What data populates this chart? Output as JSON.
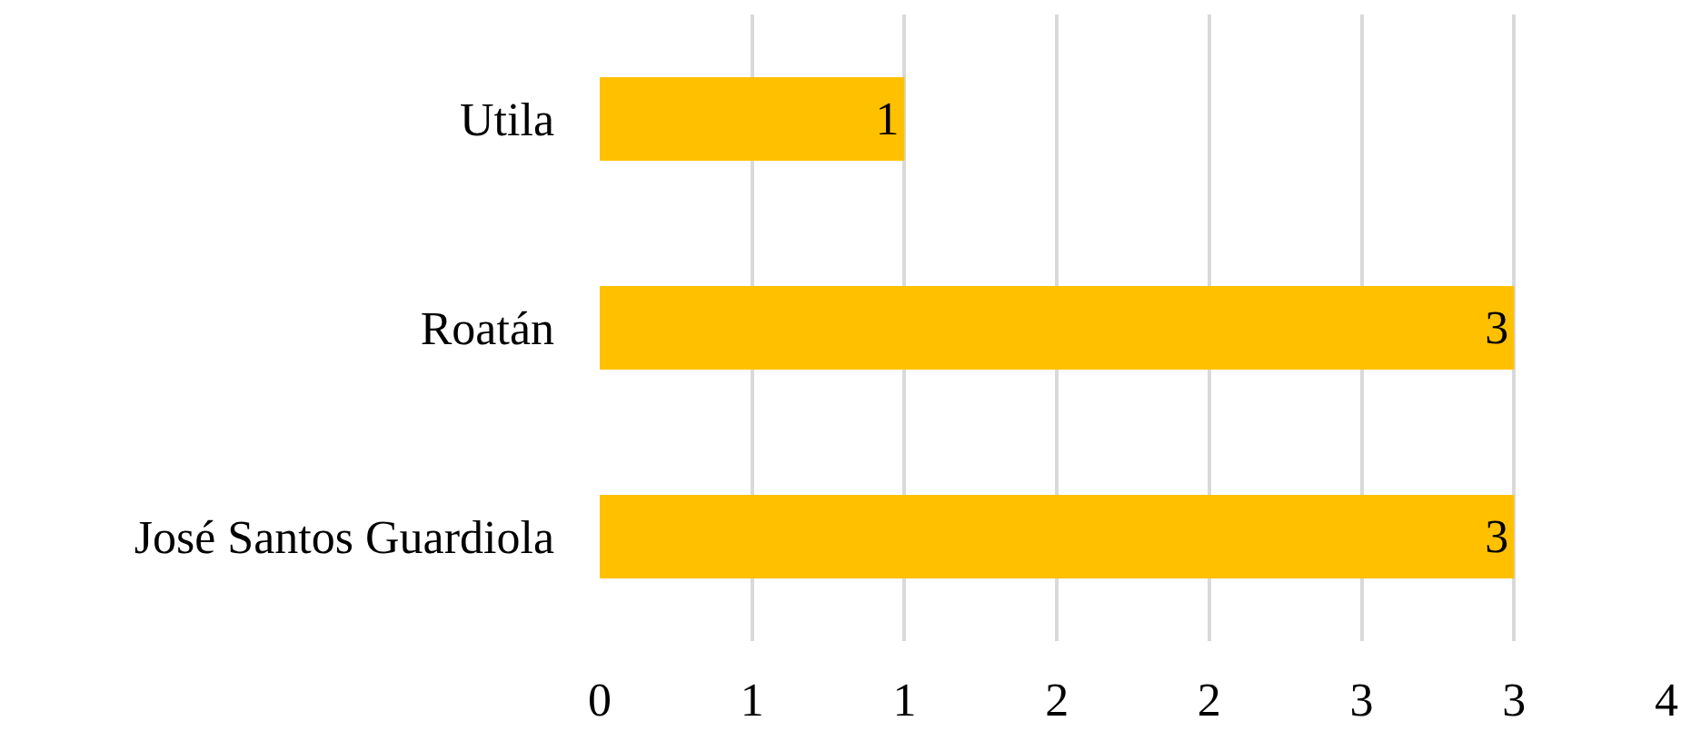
{
  "chart_data": {
    "type": "bar",
    "orientation": "horizontal",
    "categories": [
      "Utila",
      "Roatán",
      "José Santos Guardiola"
    ],
    "values": [
      1,
      3,
      3
    ],
    "color": "#ffc000",
    "data_labels": true,
    "grid": "x",
    "legend": false,
    "xlim": [
      0,
      3.5
    ],
    "xticks": [
      0,
      {
        "value": 0.5,
        "label": "1"
      },
      1,
      {
        "value": 1.5,
        "label": "2"
      },
      2,
      {
        "value": 2.5,
        "label": "3"
      },
      3,
      {
        "value": 3.5,
        "label": "4"
      }
    ]
  }
}
